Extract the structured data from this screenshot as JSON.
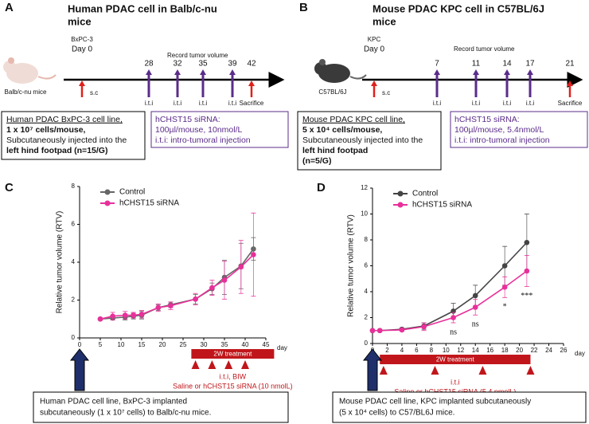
{
  "panel_labels": [
    "A",
    "B",
    "C",
    "D"
  ],
  "timelines": [
    {
      "title": [
        "Human PDAC cell in Balb/c-nu",
        "mice"
      ],
      "cell": "BxPC-3",
      "day0": "Day 0",
      "record": "Record tumor volume",
      "days": [
        "28",
        "32",
        "35",
        "39",
        "42"
      ],
      "injection": "i.t.i",
      "sc": "s.c",
      "sacrifice": "Sacrifice",
      "mouse": "Balb/c-nu mice",
      "box": [
        "Human PDAC BxPC-3 cell line,",
        "1 x 10⁷ cells/mouse,",
        "Subcutaneously injected into the",
        "left hind footpad (n=15/G)"
      ],
      "sirna": [
        "hCHST15 siRNA:",
        "100µl/mouse, 10nmol/L",
        "i.t.i: intro-tumoral injection"
      ]
    },
    {
      "title": [
        "Mouse PDAC KPC cell in C57BL/6J",
        "mice"
      ],
      "cell": "KPC",
      "day0": "Day 0",
      "record": "Record tumor volume",
      "days": [
        "7",
        "11",
        "14",
        "17",
        "21"
      ],
      "injection": "i.t.i",
      "sc": "s.c",
      "sacrifice": "Sacrifice",
      "mouse": "C57BL/6J",
      "box": [
        "Mouse PDAC KPC cell line,",
        "5 x 10⁴ cells/mouse,",
        "Subcutaneously injected into the",
        "left hind footpad",
        "(n=5/G)"
      ],
      "sirna": [
        "hCHST15 siRNA:",
        "100µl/mouse, 5.4nmol/L",
        "i.t.i: intro-tumoral injection"
      ]
    }
  ],
  "chart_data": [
    {
      "type": "line",
      "ylabel": "Relative tumor volume (RTV)",
      "xlabel": "day",
      "x": [
        5,
        8,
        11,
        13,
        15,
        19,
        22,
        28,
        32,
        35,
        39,
        42
      ],
      "xlim": [
        0,
        45
      ],
      "xticks": [
        0,
        5,
        10,
        15,
        20,
        25,
        30,
        35,
        40,
        45
      ],
      "ylim": [
        0,
        8
      ],
      "yticks": [
        0,
        2,
        4,
        6,
        8
      ],
      "legend": "upper left",
      "series": [
        {
          "name": "Control",
          "color": "#666666",
          "values": [
            1,
            1.05,
            1.1,
            1.15,
            1.2,
            1.6,
            1.75,
            2.05,
            2.6,
            3.2,
            3.8,
            4.7
          ],
          "errors": [
            0,
            0.1,
            0.15,
            0.15,
            0.2,
            0.15,
            0.15,
            0.25,
            0.3,
            0.9,
            1.2,
            0.6
          ]
        },
        {
          "name": "hCHST15 siRNA",
          "color": "#e8309a",
          "values": [
            1,
            1.15,
            1.2,
            1.2,
            1.25,
            1.6,
            1.7,
            2.05,
            2.65,
            3.05,
            3.75,
            4.4
          ],
          "errors": [
            0,
            0.2,
            0.2,
            0.15,
            0.2,
            0.2,
            0.2,
            0.3,
            0.4,
            1.0,
            1.4,
            2.2
          ]
        }
      ],
      "annotations": [],
      "treatment": {
        "label": "2W treatment",
        "start": 27,
        "end": 47,
        "injections": [
          28,
          32,
          36,
          40
        ],
        "lines": [
          "i.t.i, BIW",
          "Saline or hCHST15 siRNA (10 nmolL)"
        ]
      },
      "note": [
        "Human PDAC cell line, BxPC-3 implanted",
        "subcutaneously (1 x 10⁷ cells) to Balb/c-nu mice."
      ]
    },
    {
      "type": "line",
      "ylabel": "Relative tumor volume (RTV)",
      "xlabel": "day",
      "x": [
        0,
        1,
        4,
        7,
        11,
        14,
        18,
        21
      ],
      "xlim": [
        0,
        26
      ],
      "xticks": [
        0,
        2,
        4,
        6,
        8,
        10,
        12,
        14,
        16,
        18,
        20,
        22,
        24,
        26
      ],
      "ylim": [
        0,
        12
      ],
      "yticks": [
        0,
        2,
        4,
        6,
        8,
        10,
        12
      ],
      "legend": "upper left",
      "series": [
        {
          "name": "Control",
          "color": "#444444",
          "values": [
            1,
            1,
            1.1,
            1.35,
            2.5,
            3.7,
            6,
            7.8
          ],
          "errors": [
            0,
            0.05,
            0.1,
            0.25,
            0.6,
            0.8,
            1.5,
            2.2
          ]
        },
        {
          "name": "hCHST15 siRNA",
          "color": "#e8309a",
          "values": [
            1,
            1,
            1.05,
            1.3,
            2,
            2.8,
            4.35,
            5.6
          ],
          "errors": [
            0,
            0.05,
            0.1,
            0.3,
            0.4,
            0.6,
            0.8,
            1.2
          ]
        }
      ],
      "annotations": [
        {
          "text": "ns",
          "x": 11
        },
        {
          "text": "ns",
          "x": 14
        },
        {
          "text": "*",
          "x": 18
        },
        {
          "text": "***",
          "x": 21
        }
      ],
      "treatment": {
        "label": "2W treatment",
        "start": 1,
        "end": 21.5,
        "injections": [
          1.5,
          8.5,
          15,
          21.5
        ],
        "lines": [
          "i.t.i",
          "Saline or hCHST15 siRNA (5.4 nmolL)"
        ]
      },
      "note": [
        "Mouse PDAC cell line, KPC implanted subcutaneously",
        "(5 x 10⁴ cells) to C57/BL6J mice."
      ]
    }
  ]
}
